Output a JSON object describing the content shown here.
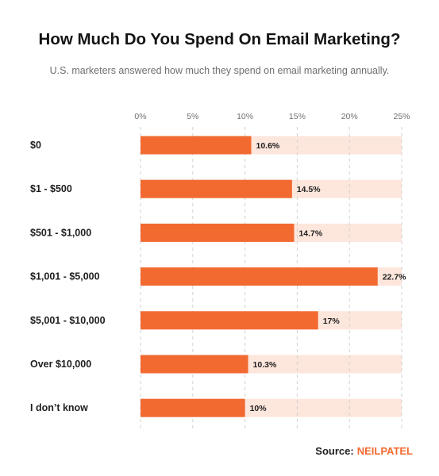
{
  "header": {
    "title": "How Much Do You Spend On Email Marketing?",
    "subtitle": "U.S. marketers answered how much they spend on email marketing annually."
  },
  "source": {
    "label": "Source:",
    "brand": "NEILPATEL"
  },
  "colors": {
    "bar": "#f26a30",
    "track": "#fde6dc",
    "grid": "#d2d2d2",
    "text": "#1f1f1f",
    "tick": "#707070"
  },
  "chart_data": {
    "type": "bar",
    "orientation": "horizontal",
    "categories": [
      "$0",
      "$1 - $500",
      "$501 - $1,000",
      "$1,001 - $5,000",
      "$5,001 - $10,000",
      "Over $10,000",
      "I don’t know"
    ],
    "values": [
      10.6,
      14.5,
      14.7,
      22.7,
      17,
      10.3,
      10
    ],
    "value_labels": [
      "10.6%",
      "14.5%",
      "14.7%",
      "22.7%",
      "17%",
      "10.3%",
      "10%"
    ],
    "xlim": [
      0,
      25
    ],
    "xticks": [
      0,
      5,
      10,
      15,
      20,
      25
    ],
    "xtick_labels": [
      "0%",
      "5%",
      "10%",
      "15%",
      "20%",
      "25%"
    ],
    "axis_position": "top",
    "grid": true,
    "legend": "none"
  }
}
